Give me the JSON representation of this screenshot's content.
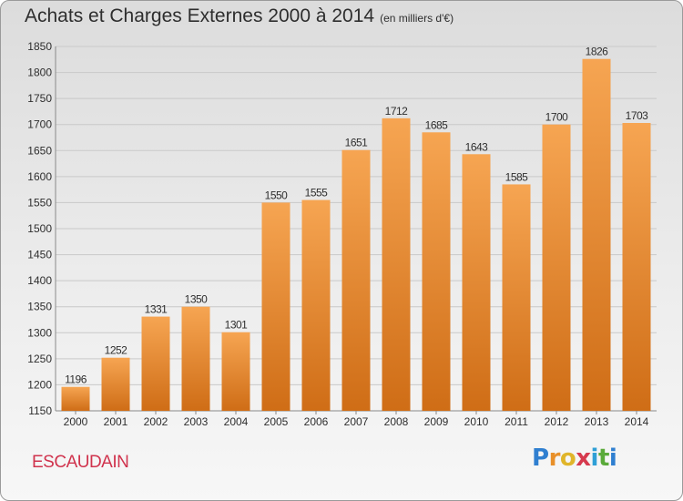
{
  "header": {
    "title": "Achats et Charges Externes 2000 à 2014",
    "subtitle": "(en milliers d'€)"
  },
  "footer": {
    "commune": "ESCAUDAIN",
    "brand_letters": [
      "P",
      "r",
      "o",
      "x",
      "i",
      "t",
      "i"
    ],
    "brand_colors": [
      "#2f7fd0",
      "#e8902a",
      "#e0b52a",
      "#d63a4e",
      "#2f9fd6",
      "#5aaa3a",
      "#2f7fd0"
    ]
  },
  "colors": {
    "bar_light": "#f6a552",
    "bar_dark": "#cf6d16",
    "grid": "#c9c9c9",
    "text": "#2e2e2e",
    "accent": "#d0334d"
  },
  "chart_data": {
    "type": "bar",
    "title": "Achats et Charges Externes 2000 à 2014",
    "subtitle": "(en milliers d'€)",
    "categories": [
      "2000",
      "2001",
      "2002",
      "2003",
      "2004",
      "2005",
      "2006",
      "2007",
      "2008",
      "2009",
      "2010",
      "2011",
      "2012",
      "2013",
      "2014"
    ],
    "values": [
      1196,
      1252,
      1331,
      1350,
      1301,
      1550,
      1555,
      1651,
      1712,
      1685,
      1643,
      1585,
      1700,
      1826,
      1703
    ],
    "ylim": [
      1150,
      1850
    ],
    "yticks": [
      1150,
      1200,
      1250,
      1300,
      1350,
      1400,
      1450,
      1500,
      1550,
      1600,
      1650,
      1700,
      1750,
      1800,
      1850
    ],
    "grid": true,
    "legend": "none"
  }
}
